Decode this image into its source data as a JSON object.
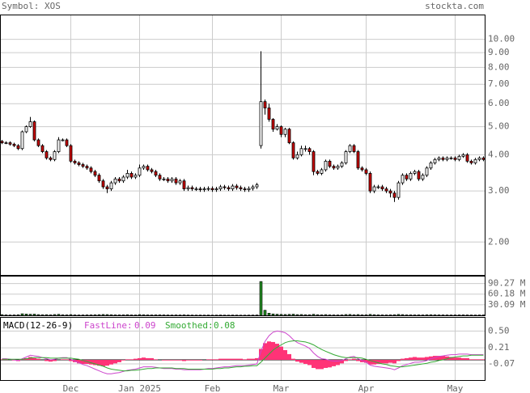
{
  "chart_data": {
    "type": "candlestick",
    "title": "Symbol: XOS",
    "source": "stockta.com",
    "log_scale": true,
    "grid": true,
    "color_up": "#ffffff",
    "color_down": "#cc0000",
    "categories": [
      null,
      null,
      null,
      null,
      null,
      null,
      null,
      null,
      null,
      null,
      null,
      null,
      null,
      null,
      null,
      null,
      null,
      "Dec",
      null,
      null,
      null,
      null,
      null,
      null,
      null,
      null,
      null,
      null,
      null,
      null,
      null,
      null,
      null,
      null,
      "Jan 2025",
      null,
      null,
      null,
      null,
      null,
      null,
      null,
      null,
      null,
      null,
      null,
      null,
      null,
      null,
      null,
      null,
      null,
      "Feb",
      null,
      null,
      null,
      null,
      null,
      null,
      null,
      null,
      null,
      null,
      null,
      null,
      null,
      null,
      null,
      null,
      "Mar",
      null,
      null,
      null,
      null,
      null,
      null,
      null,
      null,
      null,
      null,
      null,
      null,
      null,
      null,
      null,
      null,
      null,
      null,
      null,
      null,
      "Apr",
      null,
      null,
      null,
      null,
      null,
      null,
      null,
      null,
      null,
      null,
      null,
      null,
      null,
      null,
      null,
      null,
      null,
      null,
      null,
      null,
      null,
      "May",
      null,
      null,
      null,
      null,
      null,
      null,
      null
    ],
    "open": [
      4.45,
      4.4,
      4.4,
      4.35,
      4.3,
      4.2,
      4.8,
      5.0,
      5.2,
      4.5,
      4.3,
      4.1,
      3.9,
      3.85,
      4.1,
      4.5,
      4.5,
      4.3,
      3.8,
      3.75,
      3.7,
      3.65,
      3.6,
      3.5,
      3.4,
      3.25,
      3.1,
      3.05,
      3.2,
      3.3,
      3.25,
      3.35,
      3.45,
      3.35,
      3.4,
      3.6,
      3.65,
      3.55,
      3.5,
      3.4,
      3.3,
      3.3,
      3.25,
      3.3,
      3.2,
      3.25,
      3.05,
      3.08,
      3.05,
      3.05,
      3.03,
      3.05,
      3.06,
      3.03,
      3.05,
      3.1,
      3.08,
      3.05,
      3.12,
      3.08,
      3.05,
      3.03,
      3.06,
      3.1,
      4.3,
      6.1,
      5.8,
      5.3,
      4.9,
      5.0,
      4.7,
      4.9,
      4.4,
      3.9,
      4.0,
      4.2,
      4.2,
      4.1,
      3.5,
      3.45,
      3.55,
      3.8,
      3.65,
      3.6,
      3.65,
      3.75,
      4.1,
      4.3,
      4.1,
      3.6,
      3.55,
      3.45,
      3.0,
      3.1,
      3.1,
      3.05,
      3.0,
      2.95,
      2.85,
      3.2,
      3.4,
      3.3,
      3.45,
      3.5,
      3.3,
      3.4,
      3.6,
      3.75,
      3.85,
      3.9,
      3.85,
      3.9,
      3.9,
      3.85,
      3.95,
      4.0,
      3.8,
      3.75,
      3.85,
      3.9
    ],
    "high": [
      4.5,
      4.45,
      4.45,
      4.4,
      4.35,
      4.85,
      5.05,
      5.4,
      5.25,
      4.55,
      4.35,
      4.15,
      3.95,
      4.15,
      4.6,
      4.55,
      4.55,
      4.35,
      3.85,
      3.8,
      3.75,
      3.7,
      3.65,
      3.55,
      3.45,
      3.3,
      3.15,
      3.25,
      3.35,
      3.35,
      3.4,
      3.55,
      3.5,
      3.45,
      3.7,
      3.7,
      3.7,
      3.6,
      3.55,
      3.45,
      3.35,
      3.35,
      3.35,
      3.35,
      3.3,
      3.3,
      3.13,
      3.13,
      3.1,
      3.1,
      3.1,
      3.11,
      3.11,
      3.1,
      3.15,
      3.15,
      3.13,
      3.17,
      3.17,
      3.13,
      3.1,
      3.11,
      3.15,
      3.2,
      9.1,
      6.2,
      6.0,
      5.35,
      5.1,
      5.05,
      4.95,
      4.95,
      4.45,
      4.1,
      4.3,
      4.3,
      4.25,
      4.15,
      3.55,
      3.6,
      3.85,
      3.85,
      3.7,
      3.7,
      3.8,
      4.15,
      4.35,
      4.35,
      4.15,
      3.65,
      3.6,
      3.5,
      3.15,
      3.15,
      3.15,
      3.1,
      3.05,
      3.0,
      3.25,
      3.45,
      3.45,
      3.5,
      3.55,
      3.55,
      3.45,
      3.65,
      3.8,
      3.9,
      3.95,
      3.95,
      3.95,
      3.95,
      3.95,
      4.0,
      4.05,
      4.05,
      3.85,
      3.9,
      3.95,
      3.95
    ],
    "low": [
      4.35,
      4.35,
      4.3,
      4.25,
      4.15,
      4.15,
      4.75,
      4.95,
      4.45,
      4.25,
      4.05,
      3.85,
      3.8,
      3.8,
      4.05,
      4.45,
      4.25,
      3.75,
      3.7,
      3.65,
      3.6,
      3.55,
      3.45,
      3.35,
      3.2,
      3.05,
      2.95,
      3.0,
      3.15,
      3.2,
      3.2,
      3.3,
      3.3,
      3.3,
      3.35,
      3.55,
      3.5,
      3.45,
      3.35,
      3.25,
      3.25,
      3.2,
      3.2,
      3.15,
      3.15,
      3.0,
      3.0,
      3.0,
      3.0,
      2.98,
      2.98,
      3.0,
      2.98,
      2.98,
      3.0,
      3.03,
      3.0,
      3.0,
      3.03,
      3.0,
      2.98,
      2.98,
      3.01,
      3.05,
      4.2,
      5.5,
      5.2,
      4.8,
      4.85,
      4.6,
      4.6,
      4.35,
      3.85,
      3.85,
      3.95,
      4.1,
      4.0,
      3.4,
      3.4,
      3.4,
      3.5,
      3.6,
      3.55,
      3.55,
      3.6,
      3.7,
      4.05,
      4.05,
      3.55,
      3.5,
      3.4,
      2.95,
      2.95,
      3.05,
      3.0,
      2.95,
      2.85,
      2.75,
      2.8,
      3.15,
      3.25,
      3.25,
      3.4,
      3.25,
      3.25,
      3.35,
      3.55,
      3.7,
      3.8,
      3.8,
      3.8,
      3.85,
      3.8,
      3.8,
      3.9,
      3.75,
      3.7,
      3.7,
      3.8,
      3.8
    ],
    "close": [
      4.4,
      4.4,
      4.35,
      4.3,
      4.2,
      4.8,
      5.0,
      5.2,
      4.5,
      4.3,
      4.1,
      3.9,
      3.85,
      4.1,
      4.5,
      4.5,
      4.3,
      3.8,
      3.75,
      3.7,
      3.65,
      3.6,
      3.5,
      3.4,
      3.25,
      3.1,
      3.05,
      3.2,
      3.3,
      3.25,
      3.35,
      3.45,
      3.35,
      3.4,
      3.6,
      3.65,
      3.55,
      3.5,
      3.4,
      3.3,
      3.3,
      3.25,
      3.3,
      3.2,
      3.25,
      3.05,
      3.08,
      3.05,
      3.05,
      3.03,
      3.05,
      3.06,
      3.03,
      3.05,
      3.1,
      3.08,
      3.05,
      3.12,
      3.08,
      3.05,
      3.03,
      3.06,
      3.1,
      3.15,
      6.1,
      5.8,
      5.3,
      4.9,
      5.0,
      4.7,
      4.9,
      4.4,
      3.9,
      4.0,
      4.2,
      4.2,
      4.1,
      3.5,
      3.45,
      3.55,
      3.8,
      3.65,
      3.6,
      3.65,
      3.75,
      4.1,
      4.3,
      4.1,
      3.6,
      3.55,
      3.45,
      3.0,
      3.1,
      3.1,
      3.05,
      3.0,
      2.95,
      2.85,
      3.2,
      3.4,
      3.3,
      3.45,
      3.5,
      3.3,
      3.4,
      3.6,
      3.75,
      3.85,
      3.9,
      3.85,
      3.9,
      3.9,
      3.85,
      3.95,
      4.0,
      3.8,
      3.75,
      3.85,
      3.9,
      3.85
    ],
    "ylim": [
      1.54,
      12.1
    ],
    "yticks": [
      {
        "value": 10,
        "label": "10.00"
      },
      {
        "value": 9,
        "label": "9.00"
      },
      {
        "value": 8,
        "label": "8.00"
      },
      {
        "value": 7,
        "label": "7.00"
      },
      {
        "value": 6,
        "label": "6.00"
      },
      {
        "value": 5,
        "label": "5.00"
      },
      {
        "value": 4,
        "label": "4.00"
      },
      {
        "value": 3,
        "label": "3.00"
      },
      {
        "value": 2,
        "label": "2.00"
      }
    ],
    "volume": {
      "type": "bar",
      "color": "#228b22",
      "values": [
        2.1,
        1.5,
        1.2,
        1.4,
        1.8,
        4.5,
        3.8,
        3.2,
        3.5,
        2.2,
        1.8,
        2.0,
        1.6,
        2.4,
        3.0,
        1.7,
        1.5,
        2.2,
        1.4,
        1.2,
        1.3,
        1.5,
        1.6,
        1.8,
        2.1,
        2.5,
        2.3,
        1.9,
        1.5,
        1.4,
        1.6,
        2.0,
        1.3,
        1.2,
        2.2,
        1.8,
        1.4,
        1.3,
        1.5,
        1.6,
        1.4,
        1.2,
        1.1,
        1.3,
        1.2,
        1.6,
        1.1,
        1.0,
        0.9,
        1.0,
        0.9,
        1.0,
        0.8,
        0.9,
        1.1,
        0.9,
        0.8,
        1.0,
        0.9,
        0.8,
        0.8,
        0.9,
        1.0,
        1.2,
        96.0,
        14.5,
        6.2,
        4.1,
        3.3,
        2.8,
        2.5,
        2.9,
        3.4,
        2.2,
        2.4,
        1.9,
        1.8,
        3.1,
        2.0,
        1.7,
        2.2,
        1.6,
        1.4,
        1.3,
        1.5,
        2.4,
        2.6,
        1.9,
        2.3,
        1.6,
        1.7,
        2.8,
        2.0,
        1.5,
        1.4,
        1.3,
        1.6,
        1.9,
        2.7,
        2.2,
        1.5,
        1.6,
        1.4,
        1.5,
        1.3,
        1.8,
        1.9,
        1.7,
        1.5,
        1.4,
        1.3,
        1.2,
        1.3,
        1.4,
        1.5,
        1.3,
        1.2,
        1.1,
        1.2,
        1.3
      ],
      "ylim": [
        0,
        110
      ],
      "yticks": [
        {
          "value": 90.27,
          "label": "90.27 M"
        },
        {
          "value": 60.18,
          "label": "60.18 M"
        },
        {
          "value": 30.09,
          "label": "30.09 M"
        }
      ]
    },
    "macd": {
      "type": "line",
      "title": "MACD(12-26-9)",
      "ylim": [
        -0.35,
        0.73
      ],
      "yticks": [
        {
          "value": 0.5,
          "label": "0.50"
        },
        0.21,
        -0.07
      ],
      "series": [
        {
          "name": "FastLine:",
          "last": 0.09,
          "color": "#cc44cc",
          "values": [
            0.02,
            0.02,
            0.01,
            0.0,
            -0.01,
            0.02,
            0.05,
            0.08,
            0.07,
            0.06,
            0.04,
            0.02,
            0.0,
            0.01,
            0.03,
            0.04,
            0.04,
            0.01,
            -0.02,
            -0.05,
            -0.08,
            -0.1,
            -0.13,
            -0.16,
            -0.19,
            -0.22,
            -0.24,
            -0.24,
            -0.23,
            -0.22,
            -0.2,
            -0.18,
            -0.17,
            -0.16,
            -0.14,
            -0.12,
            -0.12,
            -0.12,
            -0.13,
            -0.14,
            -0.15,
            -0.15,
            -0.15,
            -0.16,
            -0.16,
            -0.17,
            -0.17,
            -0.17,
            -0.17,
            -0.17,
            -0.16,
            -0.15,
            -0.15,
            -0.14,
            -0.13,
            -0.12,
            -0.12,
            -0.11,
            -0.1,
            -0.1,
            -0.1,
            -0.09,
            -0.08,
            -0.07,
            0.15,
            0.32,
            0.42,
            0.48,
            0.5,
            0.49,
            0.47,
            0.42,
            0.35,
            0.3,
            0.27,
            0.24,
            0.2,
            0.12,
            0.06,
            0.02,
            0.01,
            -0.01,
            -0.02,
            -0.02,
            -0.01,
            0.02,
            0.05,
            0.06,
            0.02,
            -0.01,
            -0.04,
            -0.09,
            -0.11,
            -0.12,
            -0.13,
            -0.14,
            -0.15,
            -0.17,
            -0.14,
            -0.1,
            -0.08,
            -0.06,
            -0.04,
            -0.04,
            -0.03,
            -0.01,
            0.02,
            0.04,
            0.06,
            0.07,
            0.08,
            0.09,
            0.09,
            0.1,
            0.1,
            0.1,
            0.09,
            0.09,
            0.09,
            0.09
          ]
        },
        {
          "name": "Smoothed:",
          "last": 0.08,
          "color": "#33aa33",
          "values": [
            0.01,
            0.01,
            0.01,
            0.01,
            0.01,
            0.01,
            0.02,
            0.03,
            0.04,
            0.04,
            0.04,
            0.04,
            0.03,
            0.03,
            0.03,
            0.03,
            0.03,
            0.03,
            0.02,
            0.01,
            -0.01,
            -0.03,
            -0.05,
            -0.07,
            -0.09,
            -0.11,
            -0.14,
            -0.16,
            -0.17,
            -0.18,
            -0.19,
            -0.19,
            -0.18,
            -0.18,
            -0.17,
            -0.16,
            -0.15,
            -0.15,
            -0.14,
            -0.14,
            -0.14,
            -0.14,
            -0.14,
            -0.15,
            -0.15,
            -0.15,
            -0.16,
            -0.16,
            -0.16,
            -0.16,
            -0.16,
            -0.16,
            -0.16,
            -0.15,
            -0.15,
            -0.14,
            -0.14,
            -0.13,
            -0.12,
            -0.12,
            -0.11,
            -0.11,
            -0.1,
            -0.1,
            -0.04,
            0.03,
            0.1,
            0.17,
            0.22,
            0.26,
            0.3,
            0.32,
            0.33,
            0.33,
            0.32,
            0.31,
            0.29,
            0.26,
            0.22,
            0.18,
            0.15,
            0.12,
            0.09,
            0.07,
            0.05,
            0.04,
            0.04,
            0.04,
            0.04,
            0.03,
            0.01,
            -0.01,
            -0.03,
            -0.05,
            -0.07,
            -0.08,
            -0.1,
            -0.11,
            -0.12,
            -0.12,
            -0.11,
            -0.1,
            -0.09,
            -0.08,
            -0.07,
            -0.06,
            -0.04,
            -0.03,
            -0.01,
            0.0,
            0.02,
            0.04,
            0.05,
            0.06,
            0.07,
            0.07,
            0.08,
            0.08,
            0.08,
            0.08
          ]
        }
      ],
      "histogram": {
        "color": "#ff3377",
        "values": [
          0.01,
          0.01,
          0.0,
          -0.01,
          -0.02,
          0.01,
          0.03,
          0.05,
          0.03,
          0.02,
          0.0,
          -0.02,
          -0.03,
          -0.02,
          0.0,
          0.01,
          0.01,
          -0.02,
          -0.04,
          -0.06,
          -0.07,
          -0.07,
          -0.08,
          -0.09,
          -0.1,
          -0.11,
          -0.1,
          -0.08,
          -0.06,
          -0.04,
          -0.01,
          0.01,
          0.01,
          0.02,
          0.03,
          0.04,
          0.03,
          0.03,
          0.01,
          0.0,
          -0.01,
          -0.01,
          -0.01,
          -0.01,
          -0.01,
          -0.02,
          -0.01,
          -0.01,
          -0.01,
          -0.01,
          0.0,
          0.01,
          0.01,
          0.01,
          0.02,
          0.02,
          0.02,
          0.02,
          0.02,
          0.02,
          0.01,
          0.02,
          0.02,
          0.03,
          0.19,
          0.29,
          0.32,
          0.31,
          0.28,
          0.23,
          0.17,
          0.1,
          0.02,
          -0.03,
          -0.05,
          -0.07,
          -0.09,
          -0.14,
          -0.16,
          -0.16,
          -0.14,
          -0.13,
          -0.11,
          -0.09,
          -0.06,
          -0.02,
          0.01,
          0.02,
          -0.02,
          -0.04,
          -0.05,
          -0.08,
          -0.08,
          -0.07,
          -0.06,
          -0.06,
          -0.05,
          -0.06,
          -0.02,
          0.02,
          0.03,
          0.04,
          0.05,
          0.04,
          0.04,
          0.05,
          0.06,
          0.07,
          0.07,
          0.07,
          0.06,
          0.05,
          0.04,
          0.04,
          0.03,
          0.03,
          0.01,
          0.01,
          0.01,
          0.01
        ]
      }
    }
  }
}
